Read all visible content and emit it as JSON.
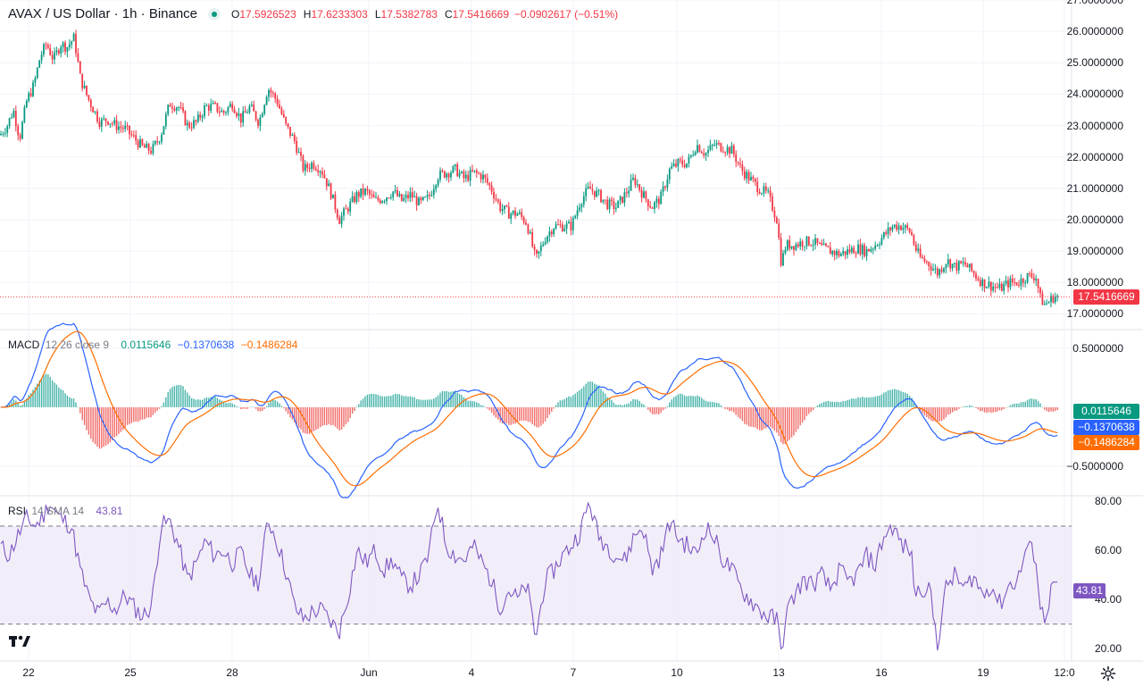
{
  "header": {
    "symbol_title": "AVAX / US Dollar · 1h · Binance",
    "open_key": "O",
    "open": "17.5926523",
    "high_key": "H",
    "high": "17.6233303",
    "low_key": "L",
    "low": "17.5382783",
    "close_key": "C",
    "close": "17.5416669",
    "change": "−0.0902617 (−0.51%)"
  },
  "macd_label": {
    "name": "MACD",
    "params": "12 26 close 9",
    "hist": "0.0115646",
    "macd": "−0.1370638",
    "signal": "−0.1486284"
  },
  "rsi_label": {
    "name": "RSI",
    "params": "14 SMA 14",
    "value": "43.81"
  },
  "price_tags": {
    "last": "17.5416669",
    "macd_hist": "0.0115646",
    "macd": "−0.1370638",
    "signal": "−0.1486284",
    "rsi": "43.81"
  },
  "colors": {
    "up": "#089981",
    "down": "#f23645",
    "macd": "#2962ff",
    "signal": "#ff6d00",
    "rsi": "#7e57c2",
    "rsi_band": "#ede7f6"
  },
  "icons": {
    "logo": "tradingview-logo-icon",
    "settings": "gear-icon"
  },
  "chart_data": [
    {
      "type": "candlestick",
      "title": "AVAX / US Dollar · 1h · Binance",
      "ylim": [
        16.5,
        27.0
      ],
      "y_ticks": [
        "27.0000000",
        "26.0000000",
        "25.0000000",
        "24.0000000",
        "23.0000000",
        "22.0000000",
        "21.0000000",
        "20.0000000",
        "19.0000000",
        "18.0000000",
        "17.0000000"
      ],
      "x_ticks": [
        "22",
        "25",
        "28",
        "Jun",
        "4",
        "7",
        "10",
        "13",
        "16",
        "19",
        "12:0"
      ],
      "last_price": 17.5416669,
      "close_path": [
        [
          0,
          22.7
        ],
        [
          8,
          23.0
        ],
        [
          15,
          23.5
        ],
        [
          22,
          22.6
        ],
        [
          30,
          23.8
        ],
        [
          38,
          24.3
        ],
        [
          45,
          25.2
        ],
        [
          52,
          25.6
        ],
        [
          60,
          25.1
        ],
        [
          68,
          25.6
        ],
        [
          75,
          25.5
        ],
        [
          83,
          25.8
        ],
        [
          90,
          24.5
        ],
        [
          98,
          23.9
        ],
        [
          105,
          23.5
        ],
        [
          112,
          23.1
        ],
        [
          120,
          23.2
        ],
        [
          130,
          23.0
        ],
        [
          140,
          22.9
        ],
        [
          150,
          22.6
        ],
        [
          160,
          22.3
        ],
        [
          170,
          22.2
        ],
        [
          180,
          22.7
        ],
        [
          190,
          23.7
        ],
        [
          200,
          23.6
        ],
        [
          210,
          23.0
        ],
        [
          220,
          23.1
        ],
        [
          230,
          23.6
        ],
        [
          240,
          23.6
        ],
        [
          250,
          23.4
        ],
        [
          260,
          23.7
        ],
        [
          270,
          23.2
        ],
        [
          280,
          23.6
        ],
        [
          290,
          23.1
        ],
        [
          300,
          24.2
        ],
        [
          310,
          23.8
        ],
        [
          320,
          23.0
        ],
        [
          330,
          22.5
        ],
        [
          340,
          21.6
        ],
        [
          350,
          21.8
        ],
        [
          360,
          21.6
        ],
        [
          370,
          20.9
        ],
        [
          380,
          20.0
        ],
        [
          390,
          20.4
        ],
        [
          400,
          20.8
        ],
        [
          410,
          20.9
        ],
        [
          420,
          20.6
        ],
        [
          430,
          20.7
        ],
        [
          440,
          20.9
        ],
        [
          450,
          20.6
        ],
        [
          460,
          20.8
        ],
        [
          470,
          20.5
        ],
        [
          480,
          20.7
        ],
        [
          490,
          21.4
        ],
        [
          500,
          21.5
        ],
        [
          510,
          21.6
        ],
        [
          520,
          21.3
        ],
        [
          530,
          21.5
        ],
        [
          540,
          21.4
        ],
        [
          550,
          21.0
        ],
        [
          560,
          20.4
        ],
        [
          570,
          20.2
        ],
        [
          580,
          20.2
        ],
        [
          590,
          19.9
        ],
        [
          600,
          18.7
        ],
        [
          610,
          19.4
        ],
        [
          620,
          19.8
        ],
        [
          630,
          19.8
        ],
        [
          640,
          19.8
        ],
        [
          650,
          20.6
        ],
        [
          660,
          21.0
        ],
        [
          670,
          20.8
        ],
        [
          680,
          20.5
        ],
        [
          690,
          20.4
        ],
        [
          700,
          20.8
        ],
        [
          710,
          21.3
        ],
        [
          720,
          20.8
        ],
        [
          730,
          20.4
        ],
        [
          740,
          20.7
        ],
        [
          750,
          21.6
        ],
        [
          760,
          21.8
        ],
        [
          770,
          21.8
        ],
        [
          780,
          22.4
        ],
        [
          790,
          22.1
        ],
        [
          800,
          22.4
        ],
        [
          810,
          22.3
        ],
        [
          820,
          22.2
        ],
        [
          830,
          21.6
        ],
        [
          840,
          21.3
        ],
        [
          850,
          21.0
        ],
        [
          860,
          20.8
        ],
        [
          870,
          20.0
        ],
        [
          875,
          18.6
        ],
        [
          880,
          19.2
        ],
        [
          890,
          19.2
        ],
        [
          900,
          19.3
        ],
        [
          910,
          19.3
        ],
        [
          920,
          19.1
        ],
        [
          930,
          19.0
        ],
        [
          940,
          18.9
        ],
        [
          950,
          19.0
        ],
        [
          960,
          19.1
        ],
        [
          970,
          19.0
        ],
        [
          980,
          19.2
        ],
        [
          990,
          19.5
        ],
        [
          1000,
          19.8
        ],
        [
          1010,
          19.8
        ],
        [
          1020,
          19.6
        ],
        [
          1025,
          19.1
        ],
        [
          1030,
          18.8
        ],
        [
          1040,
          18.6
        ],
        [
          1050,
          18.3
        ],
        [
          1060,
          18.7
        ],
        [
          1070,
          18.5
        ],
        [
          1080,
          18.6
        ],
        [
          1090,
          18.3
        ],
        [
          1100,
          18.0
        ],
        [
          1110,
          17.9
        ],
        [
          1120,
          17.8
        ],
        [
          1130,
          18.0
        ],
        [
          1140,
          18.0
        ],
        [
          1150,
          18.2
        ],
        [
          1160,
          18.2
        ],
        [
          1165,
          17.5
        ],
        [
          1170,
          17.3
        ],
        [
          1175,
          17.4
        ],
        [
          1180,
          17.55
        ],
        [
          1185,
          17.54
        ]
      ]
    },
    {
      "type": "line",
      "title": "MACD 12 26 close 9",
      "ylim": [
        -0.75,
        0.65
      ],
      "y_ticks": [
        "0.5000000",
        "−0.5000000"
      ],
      "series": [
        {
          "name": "MACD"
        },
        {
          "name": "Signal"
        },
        {
          "name": "Histogram"
        }
      ]
    },
    {
      "type": "line",
      "title": "RSI 14 SMA 14",
      "ylim": [
        15,
        82
      ],
      "y_ticks": [
        "80.00",
        "60.00",
        "40.00",
        "20.00"
      ],
      "bands": [
        30,
        70
      ],
      "last_value": 43.81,
      "rsi_path": [
        [
          0,
          62
        ],
        [
          10,
          58
        ],
        [
          20,
          66
        ],
        [
          30,
          73
        ],
        [
          40,
          70
        ],
        [
          50,
          75
        ],
        [
          55,
          80
        ],
        [
          65,
          74
        ],
        [
          80,
          70
        ],
        [
          90,
          52
        ],
        [
          100,
          40
        ],
        [
          110,
          34
        ],
        [
          120,
          39
        ],
        [
          130,
          36
        ],
        [
          140,
          42
        ],
        [
          150,
          37
        ],
        [
          160,
          33
        ],
        [
          170,
          38
        ],
        [
          180,
          70
        ],
        [
          190,
          72
        ],
        [
          200,
          62
        ],
        [
          210,
          48
        ],
        [
          220,
          55
        ],
        [
          230,
          64
        ],
        [
          240,
          58
        ],
        [
          250,
          60
        ],
        [
          260,
          55
        ],
        [
          270,
          59
        ],
        [
          280,
          50
        ],
        [
          290,
          47
        ],
        [
          300,
          73
        ],
        [
          310,
          64
        ],
        [
          320,
          52
        ],
        [
          330,
          37
        ],
        [
          340,
          32
        ],
        [
          350,
          35
        ],
        [
          360,
          36
        ],
        [
          370,
          31
        ],
        [
          380,
          27
        ],
        [
          390,
          42
        ],
        [
          400,
          60
        ],
        [
          410,
          55
        ],
        [
          420,
          60
        ],
        [
          430,
          52
        ],
        [
          440,
          56
        ],
        [
          450,
          48
        ],
        [
          460,
          46
        ],
        [
          470,
          50
        ],
        [
          480,
          58
        ],
        [
          490,
          80
        ],
        [
          500,
          62
        ],
        [
          510,
          58
        ],
        [
          520,
          56
        ],
        [
          530,
          62
        ],
        [
          540,
          55
        ],
        [
          550,
          48
        ],
        [
          560,
          37
        ],
        [
          570,
          44
        ],
        [
          580,
          40
        ],
        [
          590,
          46
        ],
        [
          600,
          24
        ],
        [
          610,
          47
        ],
        [
          620,
          52
        ],
        [
          630,
          58
        ],
        [
          640,
          62
        ],
        [
          650,
          68
        ],
        [
          660,
          80
        ],
        [
          670,
          66
        ],
        [
          680,
          62
        ],
        [
          690,
          58
        ],
        [
          700,
          56
        ],
        [
          710,
          66
        ],
        [
          720,
          70
        ],
        [
          730,
          52
        ],
        [
          740,
          58
        ],
        [
          750,
          72
        ],
        [
          760,
          65
        ],
        [
          770,
          62
        ],
        [
          780,
          58
        ],
        [
          790,
          70
        ],
        [
          800,
          65
        ],
        [
          810,
          56
        ],
        [
          820,
          52
        ],
        [
          830,
          44
        ],
        [
          840,
          40
        ],
        [
          850,
          36
        ],
        [
          860,
          33
        ],
        [
          870,
          32
        ],
        [
          875,
          18
        ],
        [
          880,
          34
        ],
        [
          890,
          42
        ],
        [
          900,
          48
        ],
        [
          910,
          46
        ],
        [
          920,
          50
        ],
        [
          930,
          44
        ],
        [
          940,
          52
        ],
        [
          950,
          47
        ],
        [
          960,
          50
        ],
        [
          970,
          58
        ],
        [
          980,
          54
        ],
        [
          990,
          66
        ],
        [
          1000,
          70
        ],
        [
          1010,
          62
        ],
        [
          1020,
          60
        ],
        [
          1025,
          42
        ],
        [
          1030,
          44
        ],
        [
          1040,
          46
        ],
        [
          1050,
          22
        ],
        [
          1060,
          46
        ],
        [
          1070,
          50
        ],
        [
          1080,
          44
        ],
        [
          1090,
          50
        ],
        [
          1100,
          42
        ],
        [
          1110,
          46
        ],
        [
          1120,
          38
        ],
        [
          1130,
          46
        ],
        [
          1140,
          48
        ],
        [
          1150,
          62
        ],
        [
          1160,
          58
        ],
        [
          1165,
          36
        ],
        [
          1170,
          33
        ],
        [
          1175,
          40
        ],
        [
          1180,
          48
        ],
        [
          1185,
          43.81
        ]
      ]
    }
  ]
}
